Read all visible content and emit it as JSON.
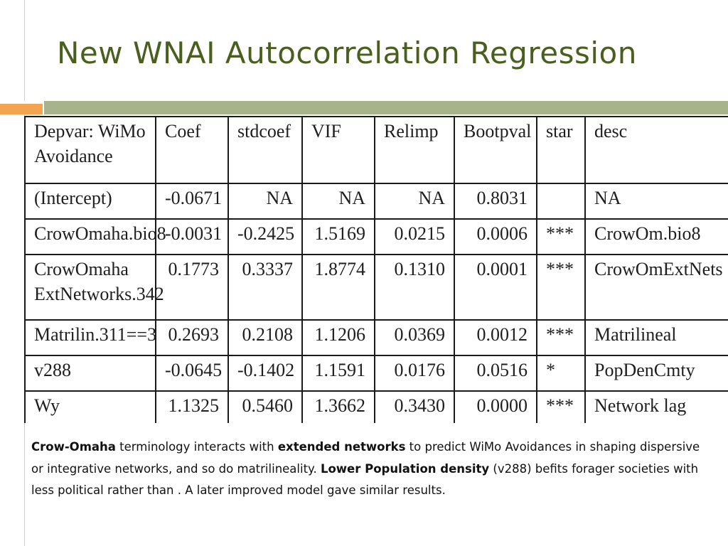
{
  "slide": {
    "title": "New WNAI Autocorrelation Regression"
  },
  "table": {
    "columns": [
      "Depvar: WiMo Avoidance",
      "Coef",
      "stdcoef",
      "VIF",
      "Relimp",
      "Bootpval",
      "star",
      "desc"
    ],
    "rows": [
      {
        "var": "(Intercept)",
        "coef": "-0.0671",
        "stdcoef": "NA",
        "vif": "NA",
        "relimp": "NA",
        "bootpval": "0.8031",
        "star": "",
        "desc": "NA"
      },
      {
        "var": "CrowOmaha.bio8",
        "coef": "-0.0031",
        "stdcoef": "-0.2425",
        "vif": "1.5169",
        "relimp": "0.0215",
        "bootpval": "0.0006",
        "star": "***",
        "desc": "CrowOm.bio8"
      },
      {
        "var": "CrowOmaha ExtNetworks.342",
        "coef": "0.1773",
        "stdcoef": "0.3337",
        "vif": "1.8774",
        "relimp": "0.1310",
        "bootpval": "0.0001",
        "star": "***",
        "desc": "CrowOmExtNets"
      },
      {
        "var": "Matrilin.311==3",
        "coef": "0.2693",
        "stdcoef": "0.2108",
        "vif": "1.1206",
        "relimp": "0.0369",
        "bootpval": "0.0012",
        "star": "***",
        "desc": "Matrilineal"
      },
      {
        "var": "v288",
        "coef": "-0.0645",
        "stdcoef": "-0.1402",
        "vif": "1.1591",
        "relimp": "0.0176",
        "bootpval": "0.0516",
        "star": "*",
        "desc": "PopDenCmty"
      },
      {
        "var": "Wy",
        "coef": "1.1325",
        "stdcoef": "0.5460",
        "vif": "1.3662",
        "relimp": "0.3430",
        "bootpval": "0.0000",
        "star": "***",
        "desc": "Network lag"
      }
    ]
  },
  "caption": {
    "b1": "Crow-Omaha",
    "t1": " terminology interacts with ",
    "b2": "extended networks",
    "t2": " to predict WiMo Avoidances in shaping dispersive or integrative networks, and so do matrilineality. ",
    "b3": "Lower Population density",
    "t3": " (v288) befits forager societies with less political rather than . A later improved model gave similar results."
  },
  "colors": {
    "title": "#4a5e1e",
    "band_olive": "#a7b38a",
    "band_orange": "#f3a44f"
  }
}
